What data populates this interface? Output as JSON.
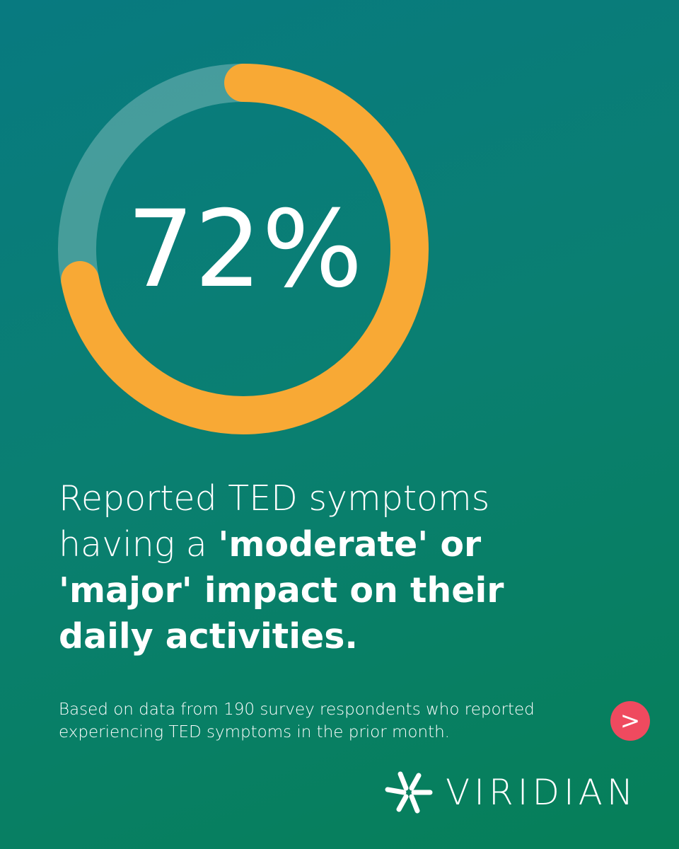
{
  "chart_data": {
    "type": "donut",
    "values": [
      72,
      28
    ],
    "value_labels": [
      "72%",
      null
    ],
    "colors": [
      "#f8a935",
      "rgba(255,255,255,0.25)"
    ]
  },
  "headline": {
    "lines": [
      [
        {
          "text": "Reported TED symptoms",
          "bold": false
        }
      ],
      [
        {
          "text": "having a ",
          "bold": false
        },
        {
          "text": "'moderate' or",
          "bold": true
        }
      ],
      [
        {
          "text": "'major' impact on their",
          "bold": true
        }
      ],
      [
        {
          "text": "daily activities.",
          "bold": true
        }
      ]
    ]
  },
  "footnote": {
    "lines": [
      "Based on data from 190 survey respondents who reported",
      "experiencing TED symptoms in the prior month."
    ]
  },
  "next_button": {
    "label": ">"
  },
  "logo": {
    "text": "VIRIDIAN"
  }
}
